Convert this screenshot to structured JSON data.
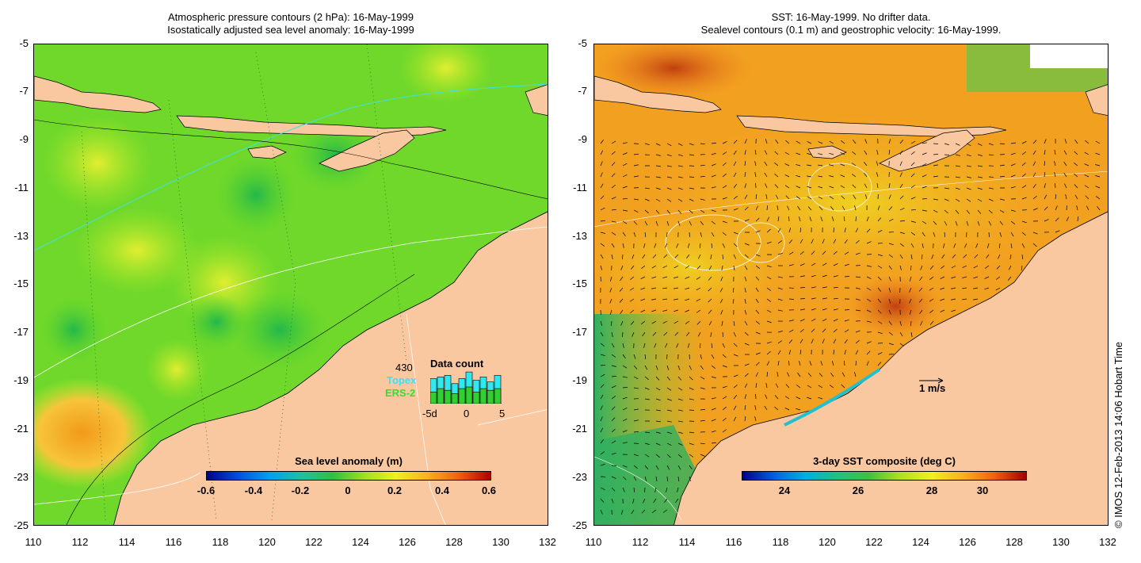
{
  "left_panel": {
    "title_line1": "Atmospheric pressure contours (2 hPa): 16-May-1999",
    "title_line2": "Isostatically adjusted sea level anomaly: 16-May-1999",
    "y_ticks": [
      "-5",
      "-7",
      "-9",
      "-11",
      "-13",
      "-15",
      "-17",
      "-19",
      "-21",
      "-23",
      "-25"
    ],
    "x_ticks": [
      "110",
      "112",
      "114",
      "116",
      "118",
      "120",
      "122",
      "124",
      "126",
      "128",
      "130",
      "132"
    ],
    "colorbar": {
      "title": "Sea level anomaly (m)",
      "ticks": [
        "-0.6",
        "-0.4",
        "-0.2",
        "0",
        "0.2",
        "0.4",
        "0.6"
      ]
    },
    "data_count": {
      "title": "Data count",
      "max_label": "430",
      "topex_label": "Topex",
      "ers_label": "ERS-2",
      "x_labels": [
        "-5d",
        "0",
        "5"
      ],
      "topex_values": [
        0.75,
        0.8,
        0.85,
        0.6,
        0.75,
        0.95,
        0.7,
        0.8,
        0.65,
        0.85
      ],
      "ers_values": [
        0.35,
        0.45,
        0.4,
        0.3,
        0.45,
        0.5,
        0.35,
        0.45,
        0.4,
        0.45
      ]
    }
  },
  "right_panel": {
    "title_line1": "SST: 16-May-1999. No drifter data.",
    "title_line2": "Sealevel contours (0.1 m) and geostrophic velocity: 16-May-1999.",
    "y_ticks": [
      "-5",
      "-7",
      "-9",
      "-11",
      "-13",
      "-15",
      "-17",
      "-19",
      "-21",
      "-23",
      "-25"
    ],
    "x_ticks": [
      "110",
      "112",
      "114",
      "116",
      "118",
      "120",
      "122",
      "124",
      "126",
      "128",
      "130",
      "132"
    ],
    "colorbar": {
      "title": "3-day SST composite (deg C)",
      "ticks": [
        "24",
        "26",
        "28",
        "30"
      ]
    },
    "scale_label": "1 m/s"
  },
  "copyright": "© IMOS 12-Feb-2013 14:06 Hobart Time",
  "colors": {
    "land": "#fac8a0",
    "left_ocean": "#66dd22",
    "right_ocean": "#f2a020"
  }
}
